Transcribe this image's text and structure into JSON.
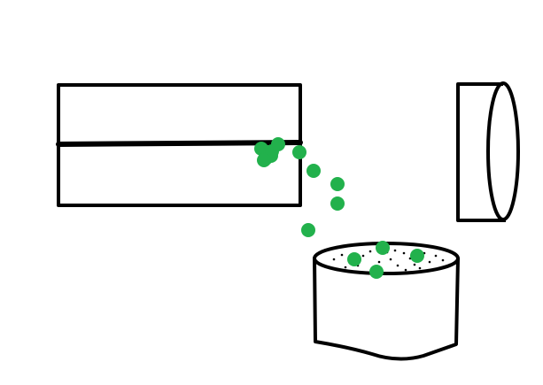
{
  "colors": {
    "background": "#ffffff",
    "ink": "#000000",
    "particle": "#22b14c"
  },
  "drawing": {
    "shapes": [
      {
        "name": "box",
        "description_icon": "rectangle-container-icon"
      },
      {
        "name": "horizontal-cylinder",
        "description_icon": "cylinder-side-icon"
      },
      {
        "name": "open-cup",
        "description_icon": "cup-icon"
      }
    ],
    "particle_count": 15,
    "speck_count": 22
  }
}
